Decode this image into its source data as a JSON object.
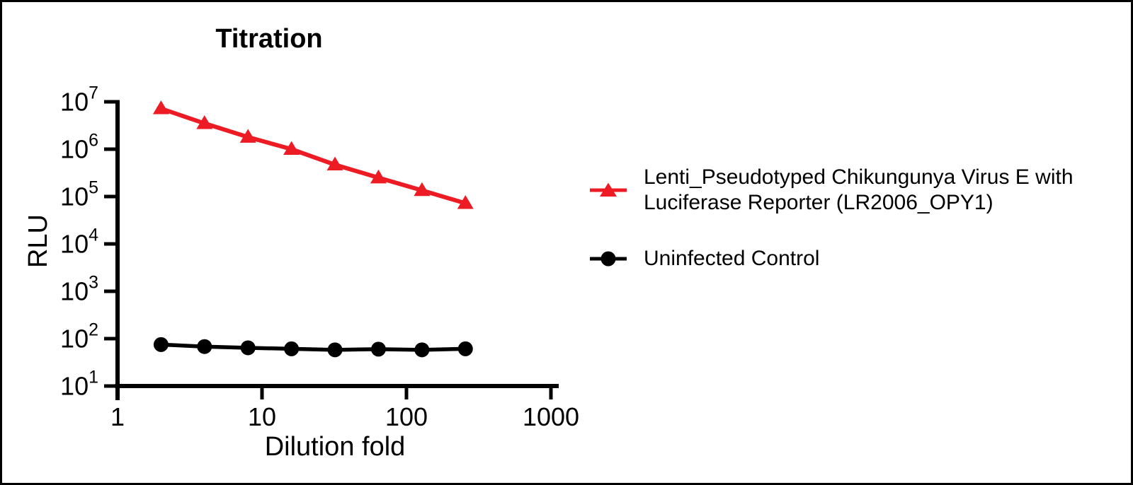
{
  "chart_data": {
    "type": "line",
    "title": "Titration",
    "xlabel": "Dilution fold",
    "ylabel": "RLU",
    "x_scale": "log10",
    "y_scale": "log10",
    "xlim": [
      1,
      1000
    ],
    "ylim": [
      10,
      10000000
    ],
    "grid": false,
    "x_ticks": [
      1,
      10,
      100,
      1000
    ],
    "y_tick_exponents": [
      1,
      2,
      3,
      4,
      5,
      6,
      7
    ],
    "y_tick_base": "10",
    "x": [
      2,
      4,
      8,
      16,
      32,
      64,
      128,
      256
    ],
    "series": [
      {
        "name": "Lenti_Pseudotyped Chikungunya Virus E with Luciferase Reporter (LR2006_OPY1)",
        "color": "#ed1c24",
        "marker": "triangle",
        "values": [
          7200000,
          3500000,
          1800000,
          1000000,
          470000,
          250000,
          135000,
          72000
        ]
      },
      {
        "name": "Uninfected Control",
        "color": "#000000",
        "marker": "circle",
        "values": [
          75,
          68,
          64,
          61,
          58,
          60,
          58,
          61
        ]
      }
    ],
    "legend": {
      "position": "right",
      "items": [
        {
          "marker": "triangle",
          "color": "#ed1c24",
          "lines": [
            "Lenti_Pseudotyped Chikungunya Virus E with",
            "Luciferase Reporter (LR2006_OPY1)"
          ]
        },
        {
          "marker": "circle",
          "color": "#000000",
          "lines": [
            "Uninfected Control"
          ]
        }
      ]
    }
  }
}
